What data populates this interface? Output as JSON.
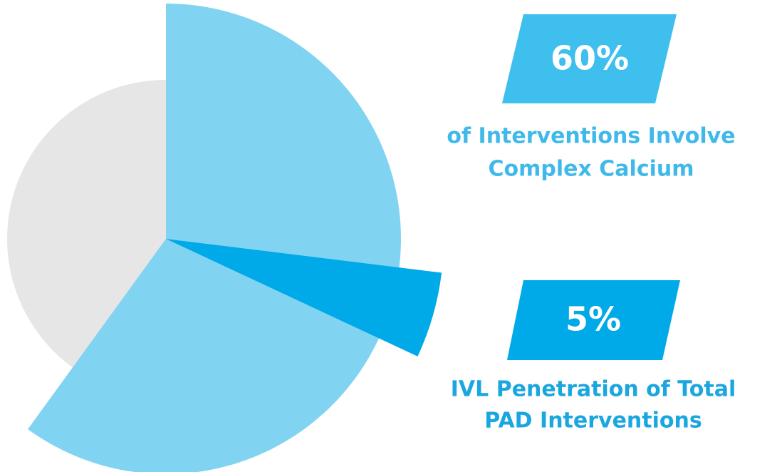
{
  "chart_data": {
    "type": "pie",
    "slices": [
      {
        "value": 60,
        "value_label": "60%",
        "color": "#81d3f2",
        "badge_color": "#3fbfee",
        "text_color": "#3fb9ea",
        "description": [
          "of Interventions Involve",
          "Complex Calcium"
        ]
      },
      {
        "value": 5,
        "value_label": "5%",
        "color": "#00a9e8",
        "badge_color": "#00a9e8",
        "text_color": "#1aa6df",
        "description": [
          "IVL Penetration of Total",
          "PAD Interventions"
        ]
      }
    ]
  }
}
